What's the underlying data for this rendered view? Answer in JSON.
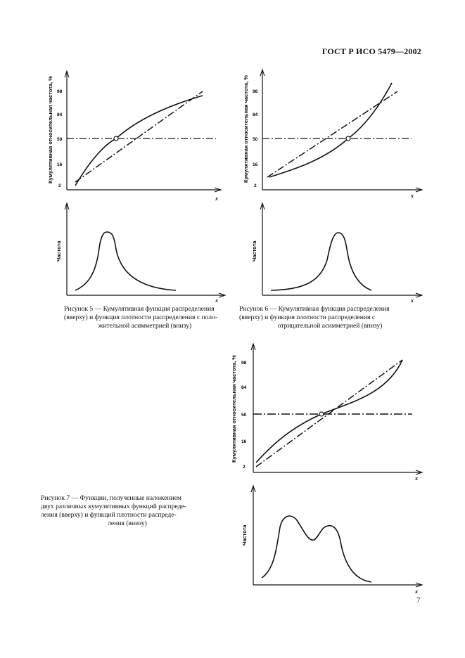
{
  "header": {
    "standard": "ГОСТ Р ИСО 5479—2002"
  },
  "page_number": "7",
  "axis_text": {
    "cumulative_ylabel": "Кумулятивная относительная частота, %",
    "density_ylabel": "Частота",
    "xlabel": "x",
    "ticks": [
      "2",
      "16",
      "50",
      "84",
      "98"
    ]
  },
  "captions": {
    "fig5": [
      "Рисунок 5 — Кумулятивная функция распределения",
      "(вверху) и функция плотности распределения с поло-",
      "жительной асимметрией (внизу)"
    ],
    "fig6": [
      "Рисунок 6 — Кумулятивная функция распределения",
      "(вверху) и функция плотности распределения с",
      "отрицательной асимметрией (внизу)"
    ],
    "fig7": [
      "Рисунок 7 — Функции, полученные наложением",
      "двух различных кумулятивных функций распреде-",
      "ления (вверху) и функций плотности распреде-",
      "ления (внизу)"
    ]
  },
  "chart_data": [
    {
      "type": "line",
      "figure": "5-top",
      "ylabel": "Кумулятивная относительная частота, %",
      "xlabel": "x",
      "y_ticks": [
        2,
        16,
        50,
        84,
        98
      ],
      "reference_line_y": 50,
      "series": []
    },
    {
      "type": "line",
      "figure": "5-bottom",
      "ylabel": "Частота",
      "xlabel": "x",
      "series": []
    },
    {
      "type": "line",
      "figure": "6-top",
      "ylabel": "Кумулятивная относительная частота, %",
      "xlabel": "x",
      "y_ticks": [
        2,
        16,
        50,
        84,
        98
      ],
      "reference_line_y": 50,
      "series": []
    },
    {
      "type": "line",
      "figure": "6-bottom",
      "ylabel": "Частота",
      "xlabel": "x",
      "series": []
    },
    {
      "type": "line",
      "figure": "7-top",
      "ylabel": "Кумулятивная относительная частота, %",
      "xlabel": "x",
      "y_ticks": [
        2,
        16,
        50,
        84,
        98
      ],
      "reference_line_y": 50,
      "series": []
    },
    {
      "type": "line",
      "figure": "7-bottom",
      "ylabel": "Частота",
      "xlabel": "x",
      "series": []
    }
  ]
}
